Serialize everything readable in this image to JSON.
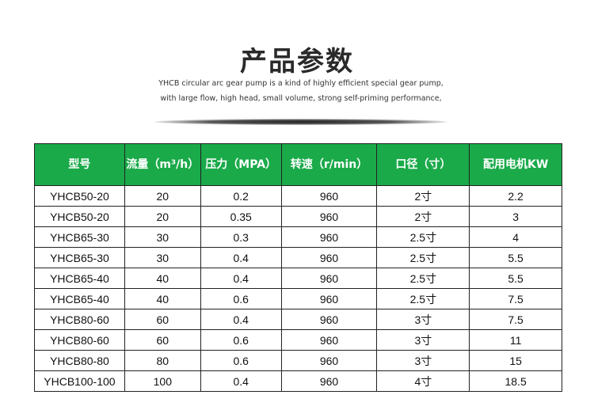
{
  "title": "产品参数",
  "description": "YHCB circular arc gear pump is a kind of highly efficient special gear pump, with large flow, high head, small volume, strong self-priming performance,",
  "accent_color": "#1aaa4a",
  "table": {
    "headers": [
      "型号",
      "流量（m³/h）",
      "压力（MPA）",
      "转速（r/min）",
      "口径（寸）",
      "配用电机KW"
    ],
    "rows": [
      [
        "YHCB50-20",
        "20",
        "0.2",
        "960",
        "2寸",
        "2.2"
      ],
      [
        "YHCB50-20",
        "20",
        "0.35",
        "960",
        "2寸",
        "3"
      ],
      [
        "YHCB65-30",
        "30",
        "0.3",
        "960",
        "2.5寸",
        "4"
      ],
      [
        "YHCB65-30",
        "30",
        "0.4",
        "960",
        "2.5寸",
        "5.5"
      ],
      [
        "YHCB65-40",
        "40",
        "0.4",
        "960",
        "2.5寸",
        "5.5"
      ],
      [
        "YHCB65-40",
        "40",
        "0.6",
        "960",
        "2.5寸",
        "7.5"
      ],
      [
        "YHCB80-60",
        "60",
        "0.4",
        "960",
        "3寸",
        "7.5"
      ],
      [
        "YHCB80-60",
        "60",
        "0.6",
        "960",
        "3寸",
        "11"
      ],
      [
        "YHCB80-80",
        "80",
        "0.6",
        "960",
        "3寸",
        "15"
      ],
      [
        "YHCB100-100",
        "100",
        "0.4",
        "960",
        "4寸",
        "18.5"
      ]
    ]
  }
}
